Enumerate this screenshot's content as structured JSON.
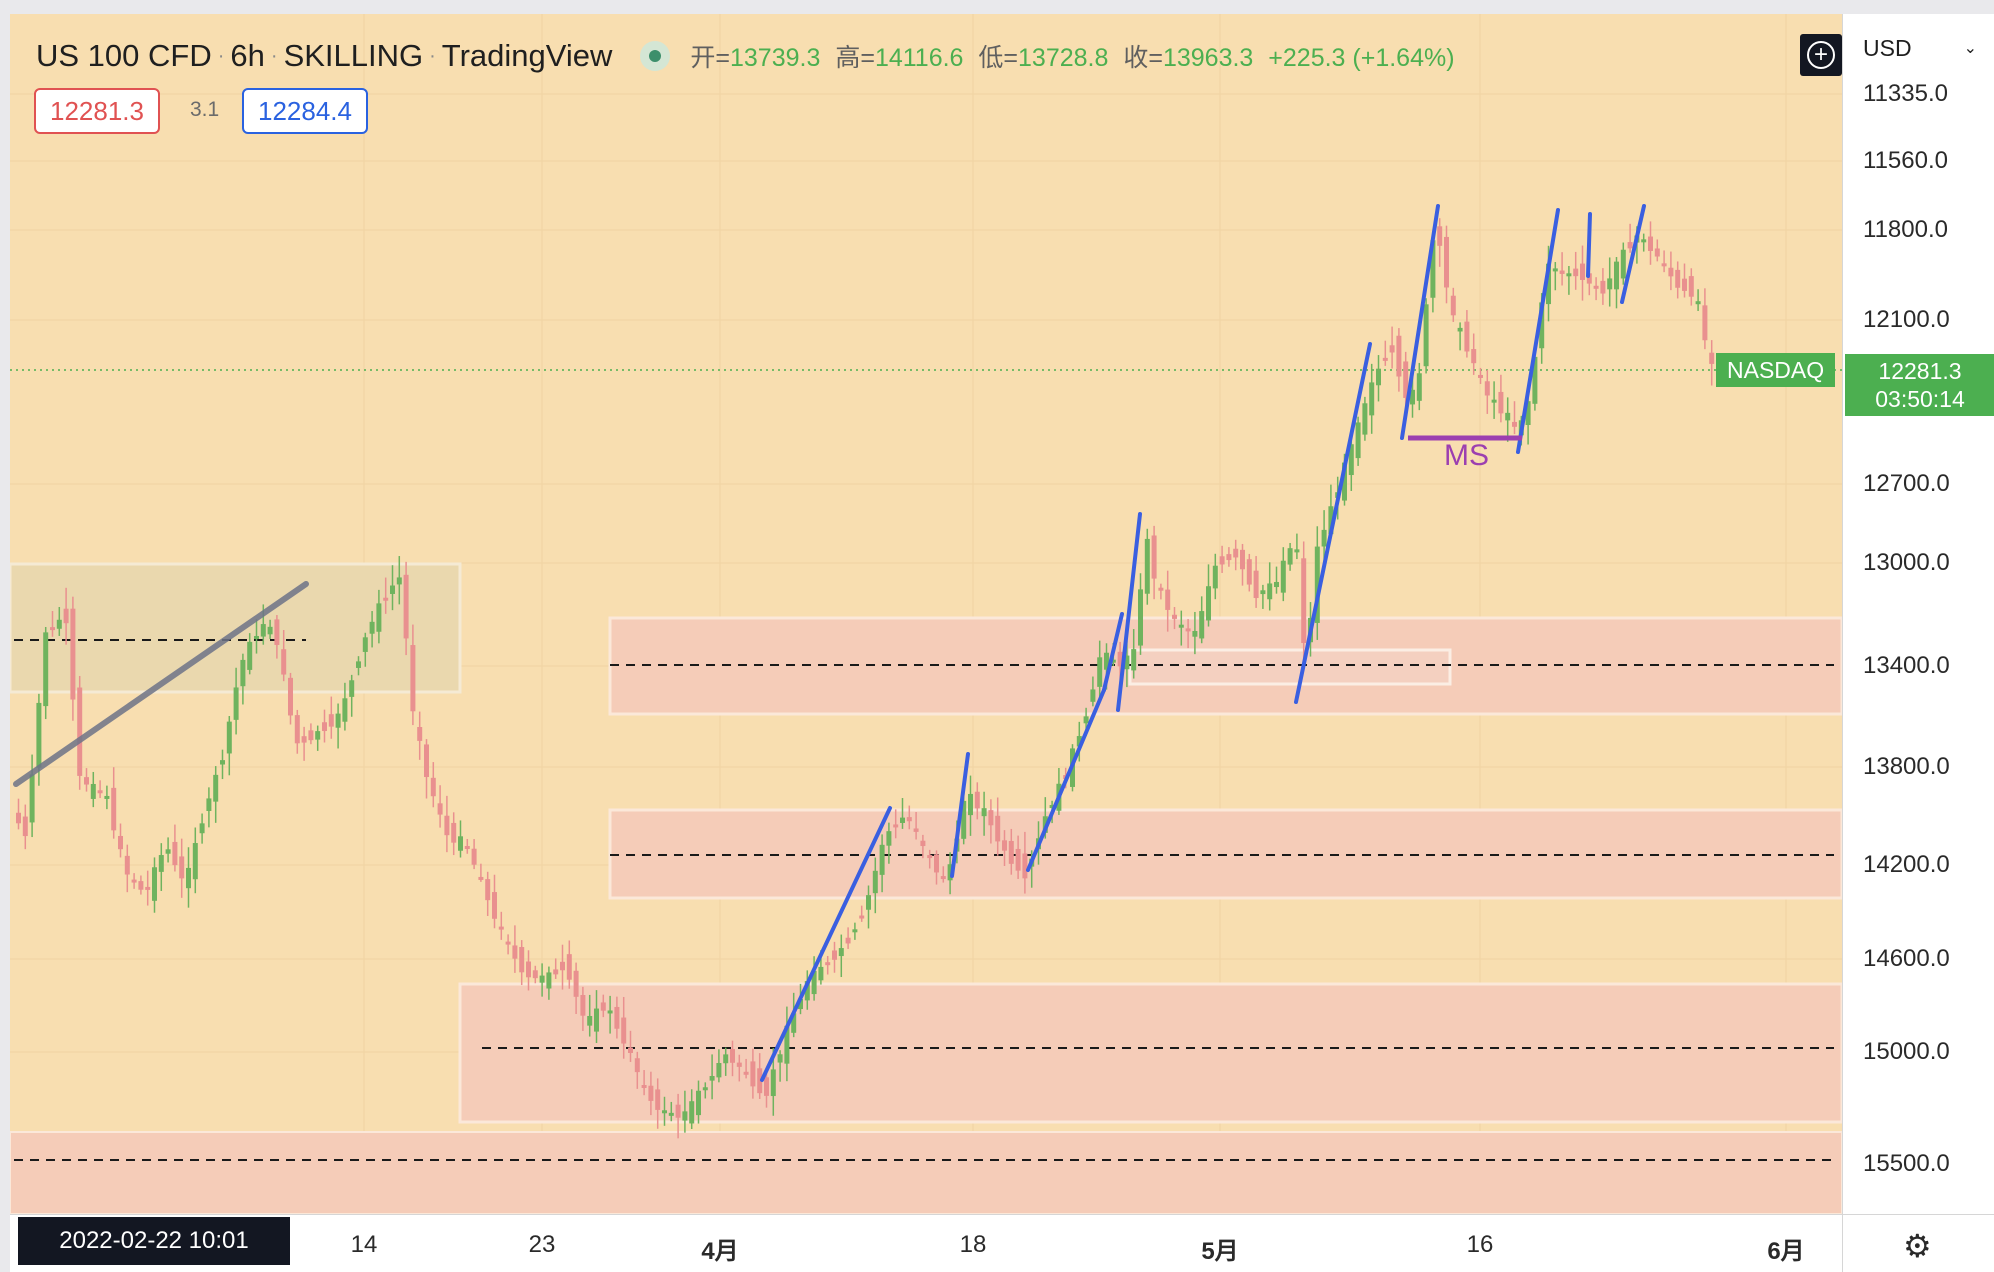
{
  "header": {
    "symbol": "US 100 CFD",
    "interval": "6h",
    "broker": "SKILLING",
    "provider": "TradingView",
    "open_label": "开=",
    "open": "13739.3",
    "high_label": "高=",
    "high": "14116.6",
    "low_label": "低=",
    "low": "13728.8",
    "close_label": "收=",
    "close": "13963.3",
    "change": "+225.3 (+1.64%)",
    "sell_price": "12281.3",
    "spread": "3.1",
    "buy_price": "12284.4"
  },
  "price_axis": {
    "currency": "USD",
    "ticks": [
      "11335.0",
      "11560.0",
      "11800.0",
      "12100.0",
      "12700.0",
      "13000.0",
      "13400.0",
      "13800.0",
      "14200.0",
      "14600.0",
      "15000.0",
      "15500.0"
    ],
    "last_price": "12281.3",
    "countdown": "03:50:14",
    "series_label": "NASDAQ"
  },
  "time_axis": {
    "cursor_label": "2022-02-22  10:01",
    "labels": [
      "14",
      "23",
      "4月",
      "18",
      "5月",
      "16",
      "6月"
    ]
  },
  "annotations": {
    "ms_label": "MS"
  },
  "colors": {
    "background": "#f8deb0",
    "up_candle": "#6fb35e",
    "down_candle": "#e9908f",
    "trend_line": "#3a5fe0",
    "zone_fill": "#f5ccb8",
    "ms_line": "#9c3fb0",
    "last_price_badge": "#4caf50"
  },
  "icons": {
    "add_button": "plus-circle-icon",
    "currency_dropdown": "chevron-down-icon",
    "settings": "gear-icon",
    "market_status": "status-dot-icon"
  }
}
